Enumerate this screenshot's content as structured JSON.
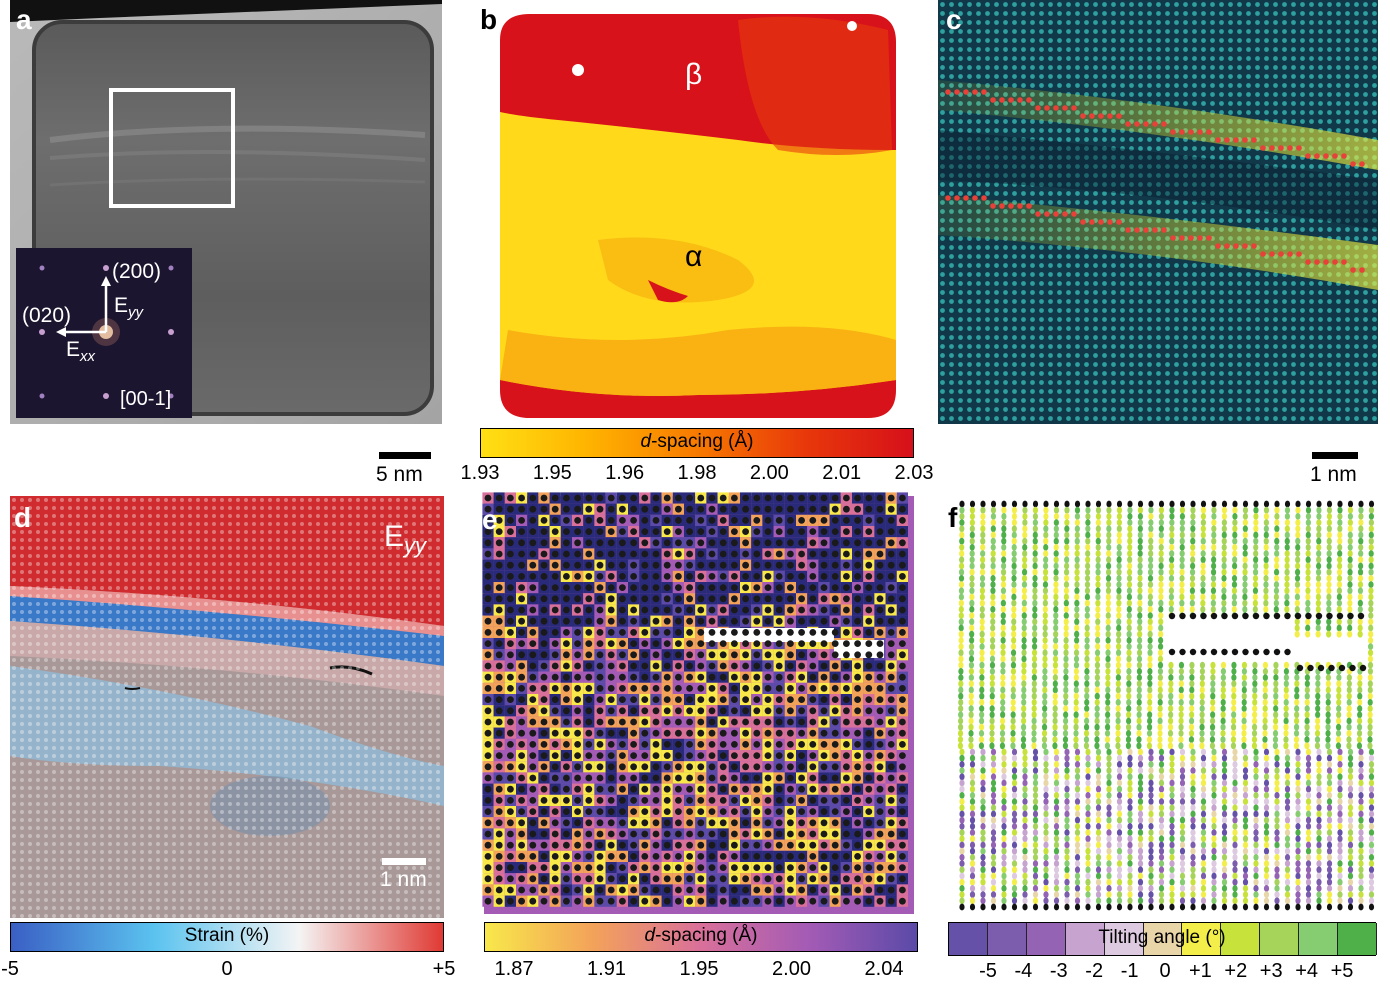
{
  "panels": {
    "a": {
      "label": "a",
      "inset": {
        "spot_200": "(200)",
        "spot_020": "(020)",
        "eyy_base": "E",
        "eyy_sub": "yy",
        "exx_base": "E",
        "exx_sub": "xx",
        "zone_axis": "[00-1]"
      },
      "scale_bar": "5 nm"
    },
    "b": {
      "label": "b",
      "phase_beta": "β",
      "phase_alpha": "α",
      "colorbar": {
        "title_italic": "d",
        "title_rest": "-spacing (Å)",
        "ticks": [
          "1.93",
          "1.95",
          "1.96",
          "1.98",
          "2.00",
          "2.01",
          "2.03"
        ],
        "colors": [
          "#ffe014",
          "#ffb300",
          "#f77a00",
          "#e8380a",
          "#d6101a"
        ]
      }
    },
    "c": {
      "label": "c",
      "scale_bar": "1 nm",
      "marker_color": "#e8413a"
    },
    "d": {
      "label": "d",
      "component_base": "E",
      "component_sub": "yy",
      "scale_bar": "1 nm",
      "colorbar": {
        "title": "Strain (%)",
        "ticks": [
          "-5",
          "0",
          "+5"
        ],
        "colors": [
          "#3a5fc4",
          "#5bc3ef",
          "#f4f4f4",
          "#e03a34"
        ]
      }
    },
    "e": {
      "label": "e",
      "colorbar": {
        "title_italic": "d",
        "title_rest": "-spacing (Å)",
        "ticks": [
          "1.87",
          "1.91",
          "1.95",
          "2.00",
          "2.04"
        ],
        "colors": [
          "#f8e84a",
          "#f3a25a",
          "#d9709a",
          "#a35bb5",
          "#5b4aa8"
        ]
      }
    },
    "f": {
      "label": "f",
      "colorbar": {
        "title": "Tilting angle (°)",
        "ticks": [
          "-5",
          "-4",
          "-3",
          "-2",
          "-1",
          "0",
          "+1",
          "+2",
          "+3",
          "+4",
          "+5"
        ],
        "colors": [
          "#6552a8",
          "#7b5cad",
          "#9463b4",
          "#c6a4cf",
          "#ddc9e0",
          "#e8d6a8",
          "#f4ee4a",
          "#c8e23c",
          "#a6d45a",
          "#86cc70",
          "#4fb04a"
        ]
      }
    }
  }
}
